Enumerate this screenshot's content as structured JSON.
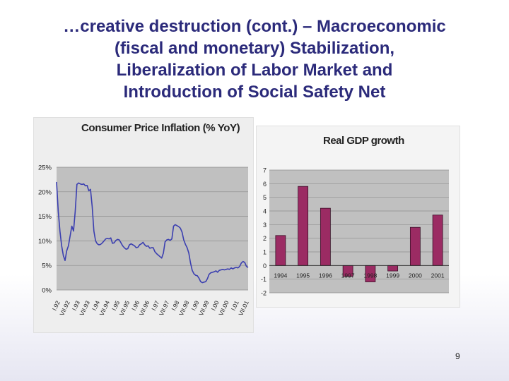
{
  "slide": {
    "title_lines": [
      "…creative destruction (cont.) – Macroeconomic",
      "(fiscal and monetary) Stabilization,",
      "Liberalization of Labor Market and",
      "Introduction of Social Safety Net"
    ],
    "page_number": "9"
  },
  "chart_data": [
    {
      "type": "line",
      "title": "Consumer Price Inflation (% YoY)",
      "xlabel": "",
      "ylabel": "",
      "y_tick_labels": [
        "0%",
        "5%",
        "10%",
        "15%",
        "20%",
        "25%"
      ],
      "ylim": [
        0,
        25
      ],
      "x_tick_labels": [
        "I.92",
        "VII.92",
        "I.93",
        "VII.93",
        "I.94",
        "VII.94",
        "I.95",
        "VII.95",
        "I.96",
        "VII.96",
        "I.97",
        "VII.97",
        "I.98",
        "VII.98",
        "I.99",
        "VII.99",
        "I.00",
        "VII.00",
        "I.01",
        "VII.01"
      ],
      "grid": true,
      "series_color": "#3b3fb0",
      "series": [
        {
          "values": [
            22,
            16,
            12,
            9,
            7,
            6,
            8,
            9,
            11,
            13,
            12,
            16,
            21.5,
            21.8,
            21.6,
            21.5,
            21.6,
            21.2,
            21.3,
            20.2,
            20.5,
            17,
            12,
            10,
            9.4,
            9.2,
            9.3,
            9.6,
            10,
            10.4,
            10.5,
            10.4,
            10.6,
            9.5,
            9.6,
            10.1,
            10.3,
            10.2,
            9.6,
            9,
            8.6,
            8.3,
            8.4,
            9.2,
            9.4,
            9.2,
            9,
            8.6,
            8.7,
            9.2,
            9.4,
            9.7,
            9.2,
            8.9,
            9,
            8.5,
            8.6,
            8.6,
            7.8,
            7.4,
            7.1,
            6.8,
            6.5,
            7.5,
            9.8,
            10.2,
            10.3,
            10.1,
            10.4,
            13,
            13.3,
            13.1,
            12.9,
            12.6,
            11.8,
            10.2,
            9.3,
            8.6,
            7.5,
            5.5,
            4,
            3.3,
            3,
            2.9,
            2.4,
            1.7,
            1.5,
            1.6,
            1.7,
            2.3,
            3.2,
            3.5,
            3.6,
            3.7,
            3.9,
            3.6,
            4,
            4.1,
            4.2,
            4.1,
            4.2,
            4.3,
            4.2,
            4.5,
            4.3,
            4.5,
            4.6,
            4.5,
            4.8,
            5.5,
            5.8,
            5.6,
            4.8,
            4.6
          ]
        }
      ]
    },
    {
      "type": "bar",
      "title": "Real GDP growth",
      "xlabel": "",
      "ylabel": "",
      "categories": [
        "1994",
        "1995",
        "1996",
        "1997",
        "1998",
        "1999",
        "2000",
        "2001"
      ],
      "values": [
        2.2,
        5.8,
        4.2,
        -0.8,
        -1.2,
        -0.4,
        2.8,
        3.7
      ],
      "y_tick_labels": [
        "-2",
        "-1",
        "0",
        "1",
        "2",
        "3",
        "4",
        "5",
        "6",
        "7"
      ],
      "ylim": [
        -2,
        7
      ],
      "grid": true,
      "bar_color": "#9b2b63"
    }
  ]
}
